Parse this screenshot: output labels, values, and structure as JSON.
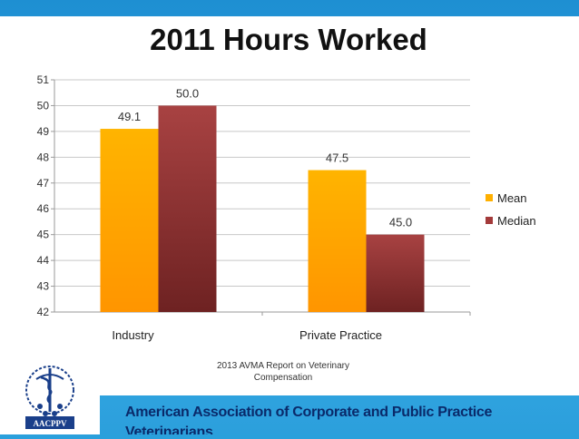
{
  "chart_data": {
    "type": "bar",
    "title": "2011 Hours Worked",
    "categories": [
      "Industry",
      "Private Practice"
    ],
    "series": [
      {
        "name": "Mean",
        "values": [
          49.1,
          47.5
        ],
        "color": "#ffb000"
      },
      {
        "name": "Median",
        "values": [
          50.0,
          45.0
        ],
        "color": "#a33a3a"
      }
    ],
    "data_labels": [
      [
        "49.1",
        "47.5"
      ],
      [
        "50.0",
        "45.0"
      ]
    ],
    "ylim": [
      42,
      51
    ],
    "yticks": [
      42,
      43,
      44,
      45,
      46,
      47,
      48,
      49,
      50,
      51
    ],
    "grid": true,
    "legend_position": "right",
    "xlabel": "",
    "ylabel": ""
  },
  "source_note": "2013 AVMA Report on Veterinary Compensation",
  "source_note_lines": [
    "2013 AVMA Report on Veterinary",
    "Compensation"
  ],
  "logo": {
    "text": "AACPPV",
    "icon": "caduceus-paw-logo-icon"
  },
  "organization": "American Association of Corporate and Public Practice Veterinarians"
}
